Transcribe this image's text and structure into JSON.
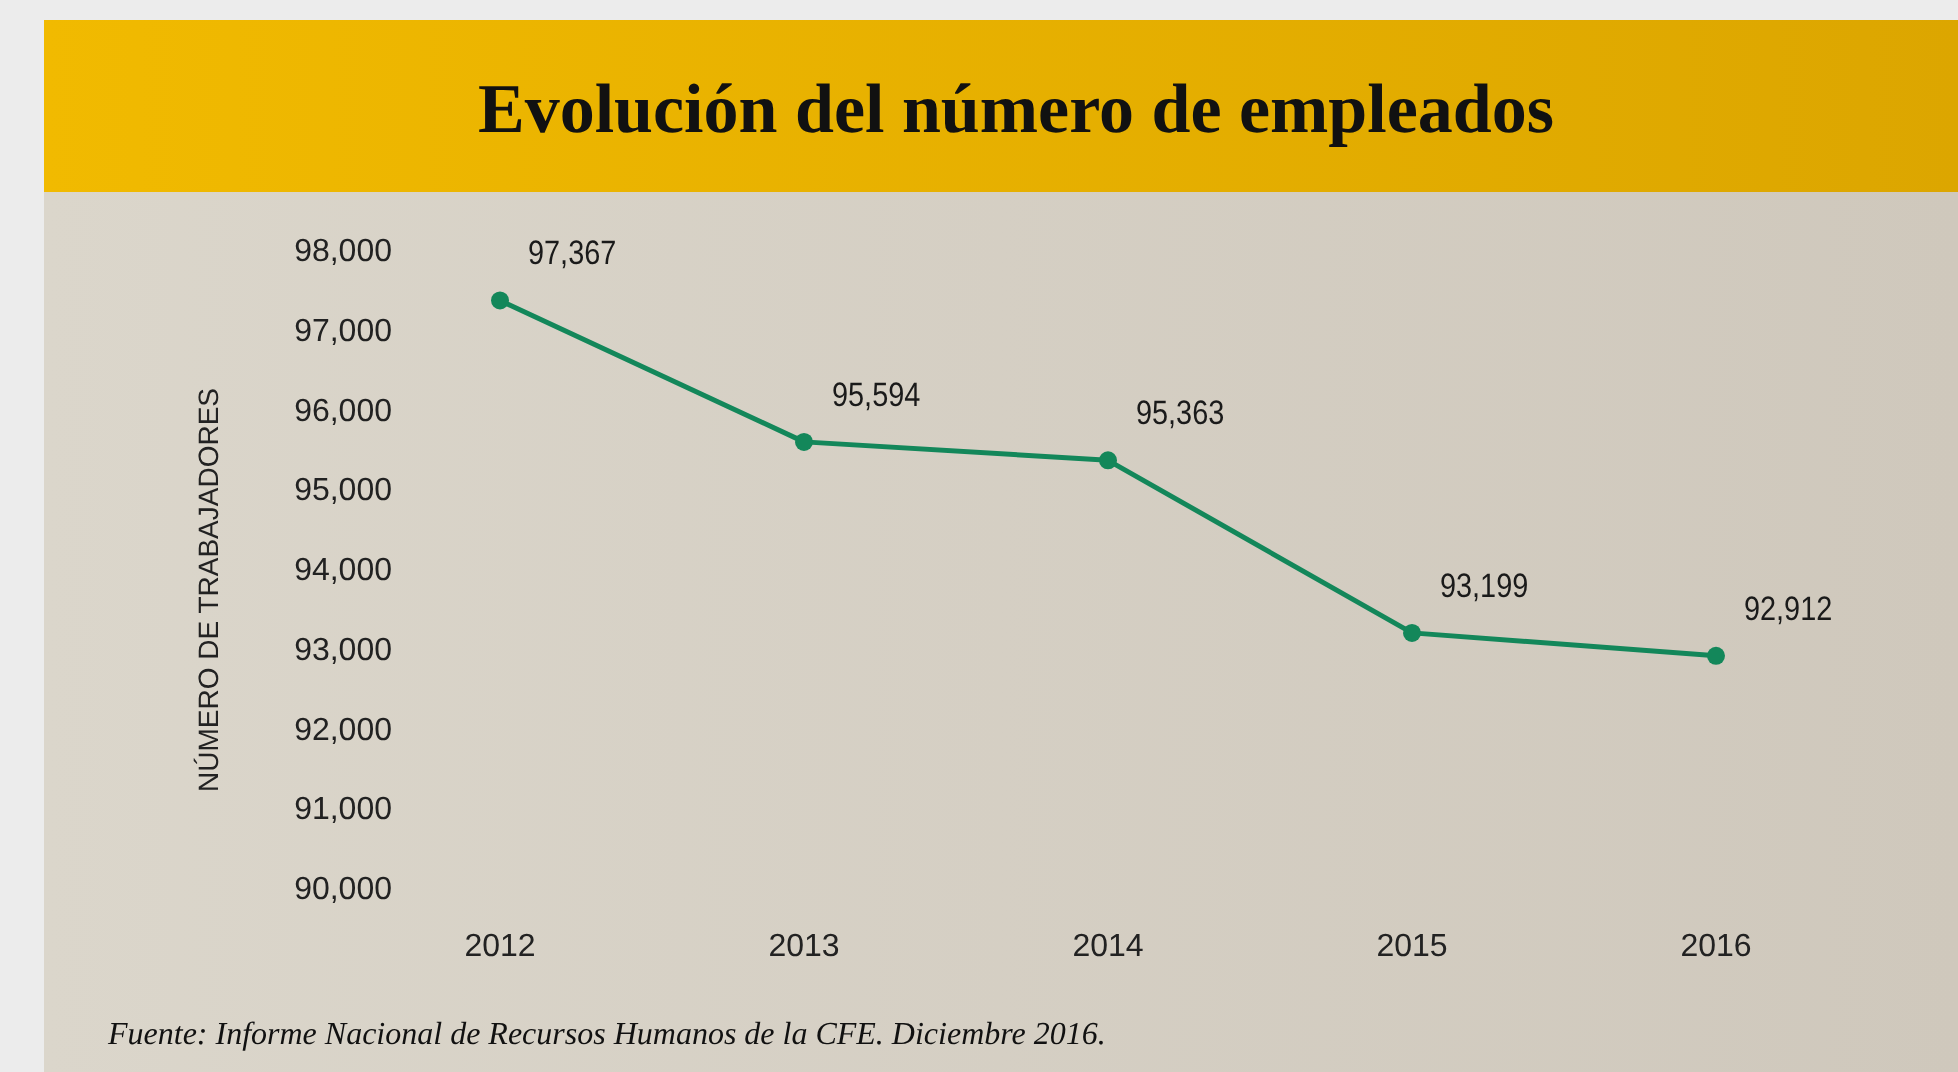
{
  "chart_data": {
    "type": "line",
    "title": "Evolución del número de empleados",
    "ylabel": "NÚMERO DE TRABAJADORES",
    "categories": [
      "2012",
      "2013",
      "2014",
      "2015",
      "2016"
    ],
    "series": [
      {
        "color": "#13875a",
        "values": [
          97367,
          95594,
          95363,
          93199,
          92912
        ],
        "value_labels": [
          "97,367",
          "95,594",
          "95,363",
          "93,199",
          "92,912"
        ]
      }
    ],
    "ylim": [
      90000,
      98000
    ],
    "yticks": [
      {
        "value": 90000,
        "label": "90,000"
      },
      {
        "value": 91000,
        "label": "91,000"
      },
      {
        "value": 92000,
        "label": "92,000"
      },
      {
        "value": 93000,
        "label": "93,000"
      },
      {
        "value": 94000,
        "label": "94,000"
      },
      {
        "value": 95000,
        "label": "95,000"
      },
      {
        "value": 96000,
        "label": "96,000"
      },
      {
        "value": 97000,
        "label": "97,000"
      },
      {
        "value": 98000,
        "label": "98,000"
      }
    ],
    "grid": false,
    "marker": "circle",
    "line_style": "solid",
    "annotations": [
      "Fuente: Informe Nacional de Recursos Humanos de la CFE. Diciembre 2016."
    ]
  }
}
